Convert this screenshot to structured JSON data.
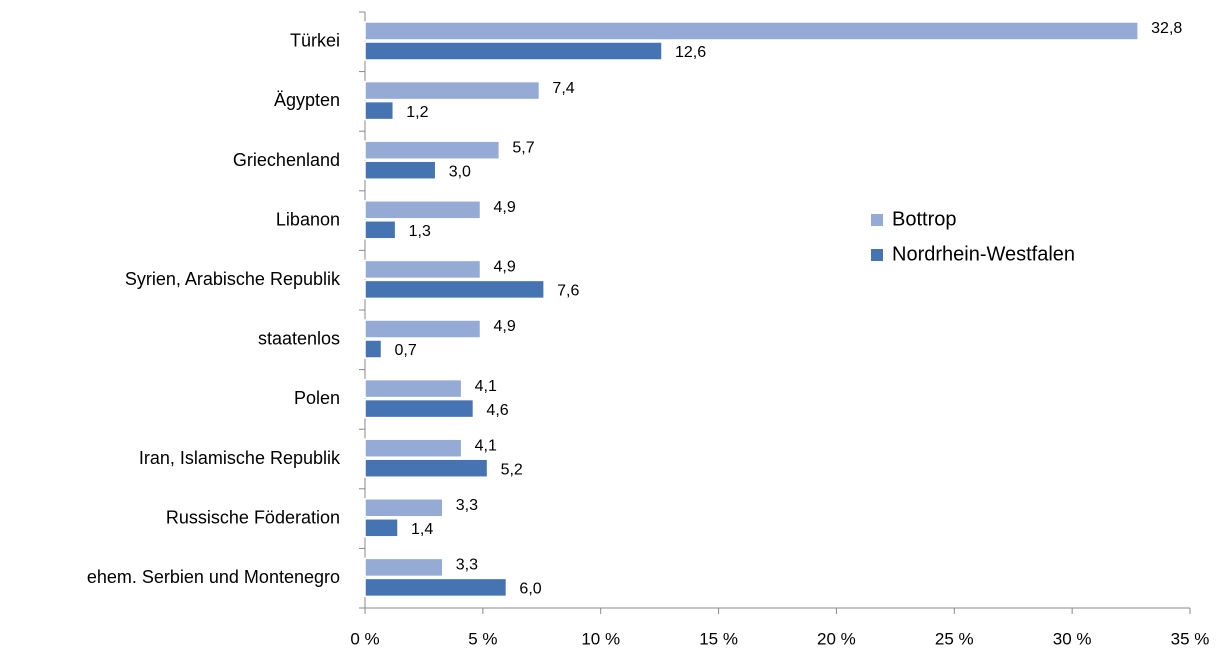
{
  "chart_data": {
    "type": "bar",
    "orientation": "horizontal",
    "categories": [
      "Türkei",
      "Ägypten",
      "Griechenland",
      "Libanon",
      "Syrien, Arabische Republik",
      "staatenlos",
      "Polen",
      "Iran, Islamische Republik",
      "Russische Föderation",
      "ehem. Serbien und Montenegro"
    ],
    "series": [
      {
        "name": "Bottrop",
        "color": "#95abd6",
        "values": [
          32.8,
          7.4,
          5.7,
          4.9,
          4.9,
          4.9,
          4.1,
          4.1,
          3.3,
          3.3
        ],
        "value_labels": [
          "32,8",
          "7,4",
          "5,7",
          "4,9",
          "4,9",
          "4,9",
          "4,1",
          "4,1",
          "3,3",
          "3,3"
        ]
      },
      {
        "name": "Nordrhein-Westfalen",
        "color": "#4674b2",
        "values": [
          12.6,
          1.2,
          3.0,
          1.3,
          7.6,
          0.7,
          4.6,
          5.2,
          1.4,
          6.0
        ],
        "value_labels": [
          "12,6",
          "1,2",
          "3,0",
          "1,3",
          "7,6",
          "0,7",
          "4,6",
          "5,2",
          "1,4",
          "6,0"
        ]
      }
    ],
    "xlim": [
      0,
      35
    ],
    "xticks": [
      {
        "value": 0,
        "label": "0 %"
      },
      {
        "value": 5,
        "label": "5 %"
      },
      {
        "value": 10,
        "label": "10 %"
      },
      {
        "value": 15,
        "label": "15 %"
      },
      {
        "value": 20,
        "label": "20 %"
      },
      {
        "value": 25,
        "label": "25 %"
      },
      {
        "value": 30,
        "label": "30 %"
      },
      {
        "value": 35,
        "label": "35 %"
      }
    ],
    "legend": "right"
  }
}
